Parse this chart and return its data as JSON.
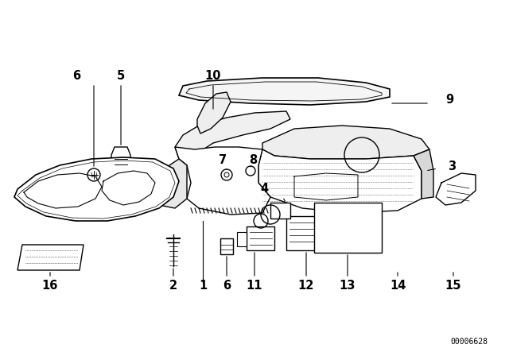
{
  "background_color": "#ffffff",
  "diagram_code": "00006628",
  "line_color": "#000000",
  "text_color": "#000000",
  "label_fontsize": 10.5,
  "figsize": [
    6.4,
    4.48
  ],
  "dpi": 100
}
